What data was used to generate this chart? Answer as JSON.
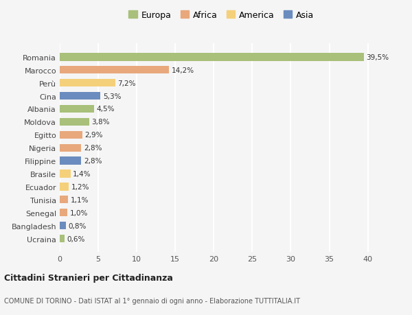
{
  "countries": [
    "Romania",
    "Marocco",
    "Perù",
    "Cina",
    "Albania",
    "Moldova",
    "Egitto",
    "Nigeria",
    "Filippine",
    "Brasile",
    "Ecuador",
    "Tunisia",
    "Senegal",
    "Bangladesh",
    "Ucraina"
  ],
  "values": [
    39.5,
    14.2,
    7.2,
    5.3,
    4.5,
    3.8,
    2.9,
    2.8,
    2.8,
    1.4,
    1.2,
    1.1,
    1.0,
    0.8,
    0.6
  ],
  "labels": [
    "39,5%",
    "14,2%",
    "7,2%",
    "5,3%",
    "4,5%",
    "3,8%",
    "2,9%",
    "2,8%",
    "2,8%",
    "1,4%",
    "1,2%",
    "1,1%",
    "1,0%",
    "0,8%",
    "0,6%"
  ],
  "colors": [
    "#a8c07a",
    "#e8a87c",
    "#f5d07a",
    "#6b8cbe",
    "#a8c07a",
    "#a8c07a",
    "#e8a87c",
    "#e8a87c",
    "#6b8cbe",
    "#f5d07a",
    "#f5d07a",
    "#e8a87c",
    "#e8a87c",
    "#6b8cbe",
    "#a8c07a"
  ],
  "legend_labels": [
    "Europa",
    "Africa",
    "America",
    "Asia"
  ],
  "legend_colors": [
    "#a8c07a",
    "#e8a87c",
    "#f5d07a",
    "#6b8cbe"
  ],
  "xlim": [
    0,
    42
  ],
  "xticks": [
    0,
    5,
    10,
    15,
    20,
    25,
    30,
    35,
    40
  ],
  "title1": "Cittadini Stranieri per Cittadinanza",
  "title2": "COMUNE DI TORINO - Dati ISTAT al 1° gennaio di ogni anno - Elaborazione TUTTITALIA.IT",
  "background_color": "#f5f5f5",
  "grid_color": "#ffffff",
  "bar_height": 0.6
}
